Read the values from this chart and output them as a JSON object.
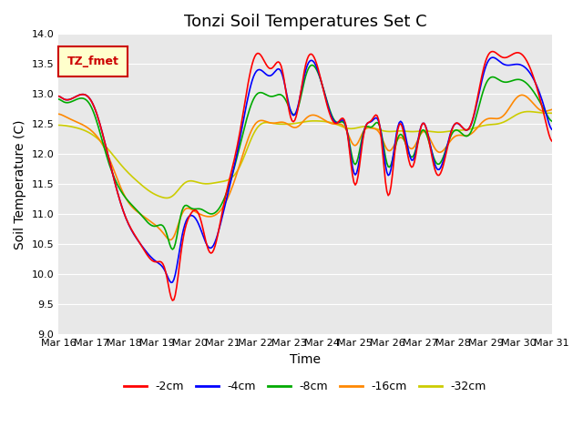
{
  "title": "Tonzi Soil Temperatures Set C",
  "xlabel": "Time",
  "ylabel": "Soil Temperature (C)",
  "ylim": [
    9.0,
    14.0
  ],
  "yticks": [
    9.0,
    9.5,
    10.0,
    10.5,
    11.0,
    11.5,
    12.0,
    12.5,
    13.0,
    13.5,
    14.0
  ],
  "xtick_labels": [
    "Mar 16",
    "Mar 17",
    "Mar 18",
    "Mar 19",
    "Mar 20",
    "Mar 21",
    "Mar 22",
    "Mar 23",
    "Mar 24",
    "Mar 25",
    "Mar 26",
    "Mar 27",
    "Mar 28",
    "Mar 29",
    "Mar 30",
    "Mar 31"
  ],
  "legend_labels": [
    "-2cm",
    "-4cm",
    "-8cm",
    "-16cm",
    "-32cm"
  ],
  "line_colors": [
    "#ff0000",
    "#0000ff",
    "#00aa00",
    "#ff8800",
    "#cccc00"
  ],
  "legend_box_color": "#ffffcc",
  "legend_box_edge": "#cc0000",
  "legend_text_color": "#cc0000",
  "legend_label": "TZ_fmet",
  "bg_color": "#e8e8e8",
  "title_fontsize": 13
}
